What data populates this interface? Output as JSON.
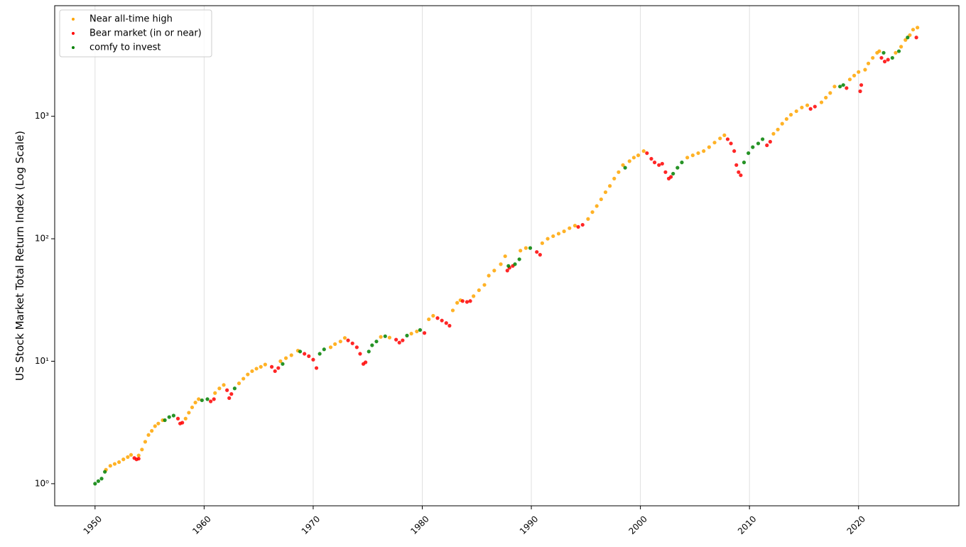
{
  "chart_data": {
    "type": "scatter",
    "ylabel": "US Stock Market Total Return Index (Log Scale)",
    "xlim": [
      1946.3,
      2029.2
    ],
    "ylim": [
      0.66,
      8000
    ],
    "yscale": "log",
    "xticks": [
      1950,
      1960,
      1970,
      1980,
      1990,
      2000,
      2010,
      2020
    ],
    "yticks": [
      {
        "value": 1,
        "label": "10⁰"
      },
      {
        "value": 10,
        "label": "10¹"
      },
      {
        "value": 100,
        "label": "10²"
      },
      {
        "value": 1000,
        "label": "10³"
      }
    ],
    "grid": "x",
    "legend": "upper left",
    "series": [
      {
        "name": "Near all-time high",
        "color": "#ffa500",
        "x": [
          1951.0,
          1951.4,
          1951.8,
          1952.2,
          1952.6,
          1953.0,
          1953.3,
          1954.0,
          1954.3,
          1954.6,
          1954.9,
          1955.2,
          1955.5,
          1955.8,
          1956.2,
          1958.3,
          1958.6,
          1958.9,
          1959.2,
          1959.5,
          1961.0,
          1961.4,
          1961.8,
          1963.2,
          1963.6,
          1964.0,
          1964.4,
          1964.8,
          1965.2,
          1965.6,
          1967.0,
          1967.5,
          1968.0,
          1968.6,
          1971.6,
          1972.0,
          1972.5,
          1972.9,
          1976.2,
          1977.0,
          1979.0,
          1979.5,
          1980.6,
          1981.0,
          1982.8,
          1983.2,
          1983.5,
          1984.7,
          1985.2,
          1985.7,
          1986.1,
          1986.6,
          1987.2,
          1987.6,
          1989.0,
          1989.5,
          1991.0,
          1991.5,
          1992.0,
          1992.5,
          1993.0,
          1993.5,
          1994.0,
          1995.2,
          1995.6,
          1996.0,
          1996.4,
          1996.8,
          1997.2,
          1997.6,
          1998.0,
          1998.4,
          1999.0,
          1999.4,
          1999.8,
          2000.3,
          2004.3,
          2004.8,
          2005.3,
          2005.8,
          2006.3,
          2006.8,
          2007.3,
          2007.7,
          2012.2,
          2012.6,
          2013.0,
          2013.4,
          2013.8,
          2014.3,
          2014.8,
          2015.3,
          2016.6,
          2017.0,
          2017.4,
          2017.8,
          2019.2,
          2019.6,
          2020.0,
          2020.6,
          2020.9,
          2021.3,
          2021.7,
          2021.9,
          2023.4,
          2023.9,
          2024.3,
          2024.7,
          2025.0,
          2025.4
        ],
        "values": [
          1.3,
          1.4,
          1.45,
          1.5,
          1.58,
          1.65,
          1.72,
          1.7,
          1.9,
          2.2,
          2.5,
          2.7,
          2.95,
          3.1,
          3.3,
          3.4,
          3.8,
          4.2,
          4.6,
          4.9,
          5.5,
          6.0,
          6.4,
          6.6,
          7.2,
          7.8,
          8.3,
          8.7,
          9.0,
          9.4,
          10.0,
          10.6,
          11.2,
          12.2,
          13.0,
          13.8,
          14.5,
          15.5,
          15.8,
          15.6,
          16.8,
          17.5,
          22,
          23.5,
          26,
          30,
          31.5,
          34,
          38,
          42,
          50,
          55,
          62,
          72,
          80,
          84,
          92,
          100,
          105,
          110,
          115,
          122,
          128,
          145,
          165,
          185,
          210,
          240,
          270,
          310,
          350,
          400,
          430,
          460,
          480,
          520,
          460,
          480,
          500,
          520,
          560,
          610,
          660,
          700,
          720,
          780,
          870,
          950,
          1030,
          1100,
          1180,
          1230,
          1300,
          1420,
          1550,
          1750,
          2000,
          2150,
          2300,
          2400,
          2700,
          3000,
          3300,
          3400,
          3300,
          3700,
          4200,
          4600,
          5100,
          5300
        ]
      },
      {
        "name": "Bear market (in or near)",
        "color": "#ff0000",
        "x": [
          1953.6,
          1953.8,
          1954.0,
          1957.6,
          1957.8,
          1958.0,
          1960.6,
          1960.9,
          1962.1,
          1962.3,
          1962.5,
          1966.2,
          1966.5,
          1966.8,
          1969.2,
          1969.6,
          1970.0,
          1970.3,
          1973.2,
          1973.6,
          1974.0,
          1974.3,
          1974.6,
          1974.8,
          1977.6,
          1977.9,
          1978.2,
          1980.2,
          1981.4,
          1981.8,
          1982.2,
          1982.5,
          1983.7,
          1984.1,
          1984.4,
          1987.8,
          1988.0,
          1988.3,
          1990.5,
          1990.8,
          1994.3,
          1994.7,
          2000.6,
          2001.0,
          2001.3,
          2001.7,
          2002.0,
          2002.3,
          2002.6,
          2002.8,
          2008.0,
          2008.3,
          2008.6,
          2008.8,
          2009.0,
          2009.2,
          2011.6,
          2011.9,
          2015.6,
          2016.0,
          2018.9,
          2020.15,
          2020.25,
          2022.1,
          2022.4,
          2022.7,
          2025.3
        ],
        "values": [
          1.62,
          1.58,
          1.6,
          3.4,
          3.1,
          3.15,
          4.7,
          4.9,
          5.8,
          5.0,
          5.4,
          9.0,
          8.3,
          8.8,
          11.5,
          11.0,
          10.3,
          8.8,
          14.8,
          14.0,
          13.0,
          11.5,
          9.5,
          9.8,
          15.0,
          14.2,
          14.8,
          17.0,
          22.5,
          21.5,
          20.5,
          19.5,
          31,
          30.5,
          31,
          55,
          58,
          60,
          78,
          74,
          125,
          130,
          500,
          450,
          420,
          400,
          410,
          350,
          310,
          320,
          650,
          600,
          520,
          400,
          350,
          330,
          580,
          620,
          1150,
          1200,
          1700,
          1600,
          1800,
          3000,
          2800,
          2900,
          4400
        ]
      },
      {
        "name": "comfy to invest",
        "color": "#008000",
        "x": [
          1950.0,
          1950.3,
          1950.6,
          1950.9,
          1956.4,
          1956.8,
          1957.2,
          1959.8,
          1960.3,
          1962.8,
          1967.2,
          1968.8,
          1970.6,
          1971.0,
          1975.1,
          1975.4,
          1975.8,
          1976.6,
          1978.6,
          1979.8,
          1987.9,
          1988.5,
          1988.9,
          1989.9,
          1998.6,
          2003.0,
          2003.4,
          2003.8,
          2009.5,
          2009.9,
          2010.3,
          2010.8,
          2011.2,
          2018.3,
          2018.6,
          2022.3,
          2023.1,
          2023.7,
          2024.5
        ],
        "values": [
          1.0,
          1.05,
          1.1,
          1.25,
          3.3,
          3.5,
          3.6,
          4.8,
          4.9,
          6.0,
          9.5,
          12,
          11.5,
          12.5,
          12.0,
          13.5,
          14.5,
          16,
          16.2,
          18,
          60,
          62,
          68,
          84,
          380,
          340,
          380,
          420,
          420,
          500,
          560,
          600,
          650,
          1750,
          1800,
          3300,
          3000,
          3400,
          4400
        ]
      }
    ]
  }
}
